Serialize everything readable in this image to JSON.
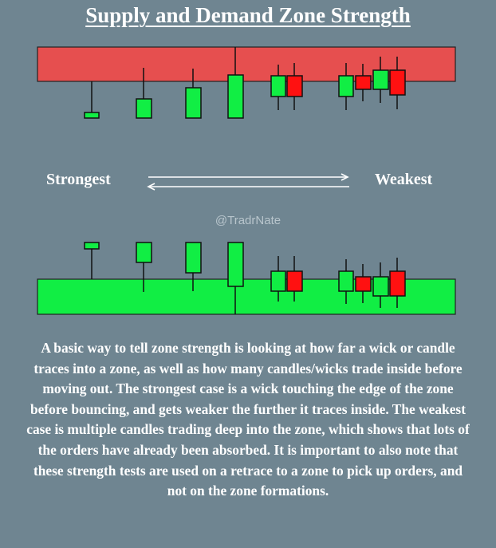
{
  "title": "Supply and Demand Zone Strength",
  "scale": {
    "strong_label": "Strongest",
    "weak_label": "Weakest"
  },
  "watermark": "@TradrNate",
  "caption": "A basic way to tell zone strength is looking at how far a wick or candle traces into a zone, as well as how many candles/wicks trade inside before moving out. The strongest case is a wick touching the edge of the zone before bouncing, and gets weaker the further it traces inside. The weakest case is multiple candles trading deep into the zone, which shows that lots of the orders have already been absorbed. It is important to also note that these strength tests are used on a retrace to a zone to pick up orders, and not on the zone formations.",
  "colors": {
    "background": "#6f8591",
    "supply_zone": "#e64f4f",
    "demand_zone": "#11ee44",
    "bull_candle": "#11ee44",
    "bear_candle": "#ff1111",
    "arrows": "#ffffff"
  },
  "zones": [
    {
      "name": "supply-zone",
      "type": "supply"
    },
    {
      "name": "demand-zone",
      "type": "demand"
    }
  ]
}
